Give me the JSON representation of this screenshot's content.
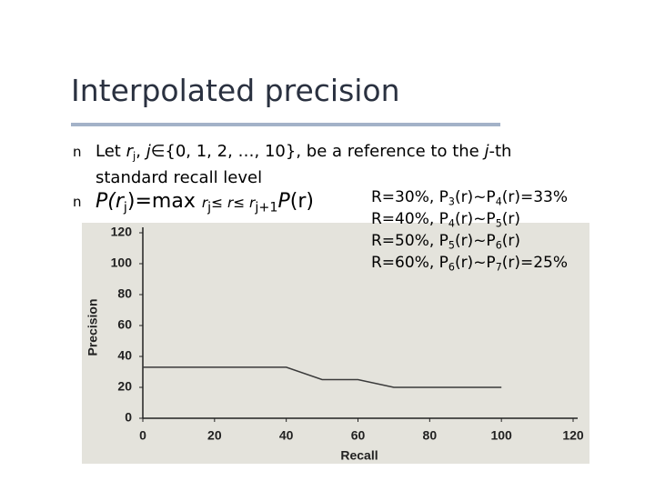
{
  "slide": {
    "title": "Interpolated precision",
    "bullet_marker": "n",
    "bullets": [
      [
        {
          "text": "Let "
        },
        {
          "text": "r",
          "style": "italic"
        },
        {
          "text": "j",
          "style": "sub"
        },
        {
          "text": ", "
        },
        {
          "text": "j",
          "style": "italic"
        },
        {
          "text": "∈{0, 1, 2, …, 10}, be a reference to the "
        },
        {
          "text": "j",
          "style": "italic"
        },
        {
          "text": "-th standard recall level"
        }
      ],
      [
        {
          "text": "P(r",
          "style": "italic"
        },
        {
          "text": "j",
          "style": "sub"
        },
        {
          "text": ")=max "
        },
        {
          "text": "r",
          "style": "small-italic"
        },
        {
          "text": "j",
          "style": "sub"
        },
        {
          "text": "≤ r≤ r",
          "style": "small-italic"
        },
        {
          "text": "j+1",
          "style": "sub"
        },
        {
          "text": "P",
          "style": "italic"
        },
        {
          "text": "(r)"
        }
      ]
    ],
    "notes": [
      [
        "R=30%, P",
        "3",
        "(r)~P",
        "4",
        "(r)=33%"
      ],
      [
        "R=40%, P",
        "4",
        "(r)~P",
        "5",
        "(r)"
      ],
      [
        "R=50%, P",
        "5",
        "(r)~P",
        "6",
        "(r)"
      ],
      [
        "R=60%, P",
        "6",
        "(r)~P",
        "7",
        "(r)=25%"
      ]
    ]
  },
  "chart_data": {
    "type": "line",
    "x_label": "Recall",
    "y_label": "Precision",
    "x": [
      0,
      10,
      20,
      30,
      40,
      50,
      60,
      70,
      80,
      90,
      100
    ],
    "values": [
      33,
      33,
      33,
      33,
      33,
      25,
      25,
      20,
      20,
      20,
      20
    ],
    "color": "#3a3a3a",
    "xlim": [
      0,
      120
    ],
    "ylim": [
      0,
      120
    ],
    "xticks": [
      0,
      20,
      40,
      60,
      80,
      100,
      120
    ],
    "yticks": [
      0,
      20,
      40,
      60,
      80,
      100,
      120
    ],
    "grid": false
  }
}
